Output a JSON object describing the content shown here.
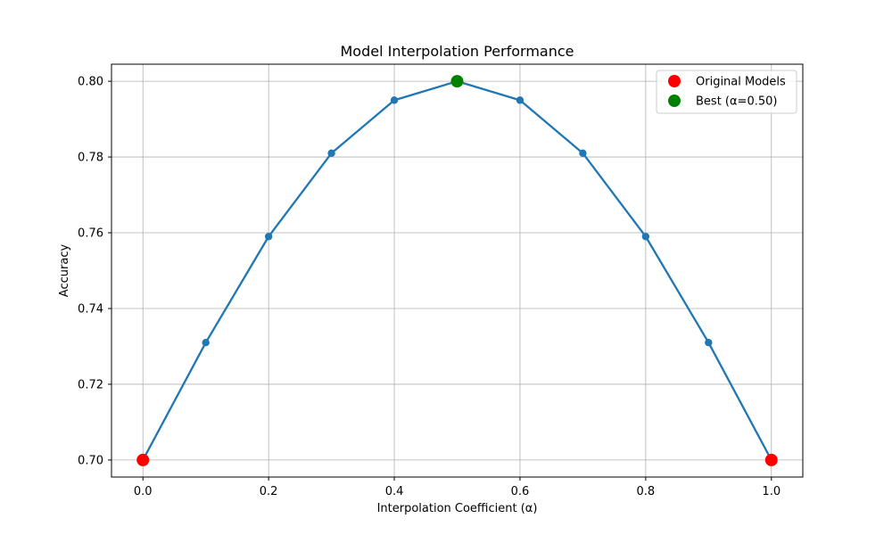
{
  "chart_data": {
    "type": "line",
    "title": "Model Interpolation Performance",
    "xlabel": "Interpolation Coefficient (α)",
    "ylabel": "Accuracy",
    "xlim": [
      -0.05,
      1.05
    ],
    "ylim": [
      0.6955,
      0.8045
    ],
    "xticks": [
      0.0,
      0.2,
      0.4,
      0.6,
      0.8,
      1.0
    ],
    "xtick_labels": [
      "0.0",
      "0.2",
      "0.4",
      "0.6",
      "0.8",
      "1.0"
    ],
    "yticks": [
      0.7,
      0.72,
      0.74,
      0.76,
      0.78,
      0.8
    ],
    "ytick_labels": [
      "0.70",
      "0.72",
      "0.74",
      "0.76",
      "0.78",
      "0.80"
    ],
    "grid": true,
    "series": [
      {
        "x": [
          0.0,
          0.1,
          0.2,
          0.3,
          0.4,
          0.5,
          0.6,
          0.7,
          0.8,
          0.9,
          1.0
        ],
        "y": [
          0.7,
          0.731,
          0.759,
          0.781,
          0.795,
          0.8,
          0.795,
          0.781,
          0.759,
          0.731,
          0.7
        ],
        "color": "#1f77b4"
      }
    ],
    "highlights": [
      {
        "name": "Original Models",
        "x": [
          0.0,
          1.0
        ],
        "y": [
          0.7,
          0.7
        ],
        "color": "#ff0000"
      },
      {
        "name": "Best (α=0.50)",
        "x": [
          0.5
        ],
        "y": [
          0.8
        ],
        "color": "#008000"
      }
    ],
    "legend": {
      "position": "top-right",
      "entries": [
        {
          "label": "Original Models",
          "color": "#ff0000"
        },
        {
          "label": "Best (α=0.50)",
          "color": "#008000"
        }
      ]
    }
  }
}
